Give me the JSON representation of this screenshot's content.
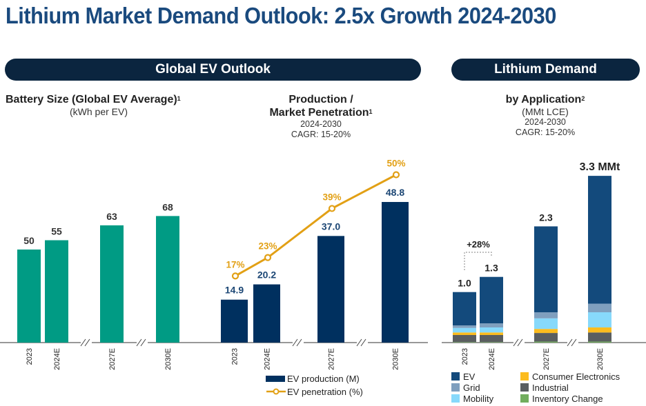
{
  "page_title": "Lithium Market Demand Outlook: 2.5x Growth 2024-2030",
  "bands": {
    "ev": "Global EV Outlook",
    "lithium": "Lithium Demand"
  },
  "colors": {
    "title": "#1a4a7e",
    "band": "#0b253f",
    "battery": "#009b84",
    "production": "#00305f",
    "penetration": "#e2a015",
    "ev": "#134a7c",
    "grid": "#7f9fbe",
    "mobility": "#87d9fb",
    "consumer": "#fcbc1e",
    "industrial": "#5a5e60",
    "inventory": "#72ad5e",
    "axis": "#777777"
  },
  "chart_data": [
    {
      "type": "bar",
      "title": "Battery Size (Global EV Average)",
      "footnote": "1",
      "subtitle": "(kWh per EV)",
      "categories": [
        "2023",
        "2024E",
        "2027E",
        "2030E"
      ],
      "values": [
        50,
        55,
        63,
        68
      ],
      "labels": [
        "50",
        "55",
        "63",
        "68"
      ],
      "axis_breaks": [
        "2024E-2027E",
        "2027E-2030E"
      ],
      "ylim": [
        0,
        70
      ],
      "grid": false
    },
    {
      "type": "bar",
      "title_line1": "Production /",
      "title_line2": "Market Penetration",
      "footnote": "1",
      "note_line1": "2024-2030",
      "note_line2": "CAGR: 15-20%",
      "categories": [
        "2023",
        "2024E",
        "2027E",
        "2030E"
      ],
      "series": [
        {
          "name": "EV production (M)",
          "kind": "bar",
          "values": [
            14.9,
            20.2,
            37.0,
            48.8
          ],
          "labels": [
            "14.9",
            "20.2",
            "37.0",
            "48.8"
          ]
        },
        {
          "name": "EV penetration (%)",
          "kind": "line",
          "values": [
            17,
            23,
            39,
            50
          ],
          "labels": [
            "17%",
            "23%",
            "39%",
            "50%"
          ]
        }
      ],
      "axis_breaks": [
        "2024E-2027E",
        "2027E-2030E"
      ],
      "grid": false,
      "legend": "bottom"
    },
    {
      "type": "bar",
      "stacked": true,
      "title": "by Application",
      "footnote": "2",
      "subtitle": "(MMt LCE)",
      "note_line1": "2024-2030",
      "note_line2": "CAGR: 15-20%",
      "categories": [
        "2023",
        "2024E",
        "2027E",
        "2030E"
      ],
      "totals": [
        1.0,
        1.3,
        2.3,
        3.3
      ],
      "total_labels": [
        "1.0",
        "1.3",
        "2.3",
        "3.3 MMt"
      ],
      "series": [
        {
          "name": "Inventory Change",
          "key": "inventory",
          "values": [
            0.01,
            0.01,
            0.02,
            0.02
          ]
        },
        {
          "name": "Industrial",
          "key": "industrial",
          "values": [
            0.14,
            0.14,
            0.17,
            0.18
          ]
        },
        {
          "name": "Consumer Electronics",
          "key": "consumer",
          "values": [
            0.05,
            0.05,
            0.08,
            0.1
          ]
        },
        {
          "name": "Mobility",
          "key": "mobility",
          "values": [
            0.09,
            0.1,
            0.21,
            0.3
          ]
        },
        {
          "name": "Grid",
          "key": "grid",
          "values": [
            0.05,
            0.08,
            0.12,
            0.17
          ]
        },
        {
          "name": "EV",
          "key": "ev",
          "values": [
            0.66,
            0.92,
            1.7,
            2.53
          ]
        }
      ],
      "annotation": "+28%",
      "axis_breaks": [
        "2024E-2027E",
        "2027E-2030E"
      ],
      "ylim": [
        0,
        3.3
      ],
      "grid": false,
      "legend": "bottom",
      "legend_order": [
        {
          "name": "EV",
          "key": "ev"
        },
        {
          "name": "Grid",
          "key": "grid"
        },
        {
          "name": "Mobility",
          "key": "mobility"
        },
        {
          "name": "Consumer Electronics",
          "key": "consumer"
        },
        {
          "name": "Industrial",
          "key": "industrial"
        },
        {
          "name": "Inventory Change",
          "key": "inventory"
        }
      ]
    }
  ]
}
